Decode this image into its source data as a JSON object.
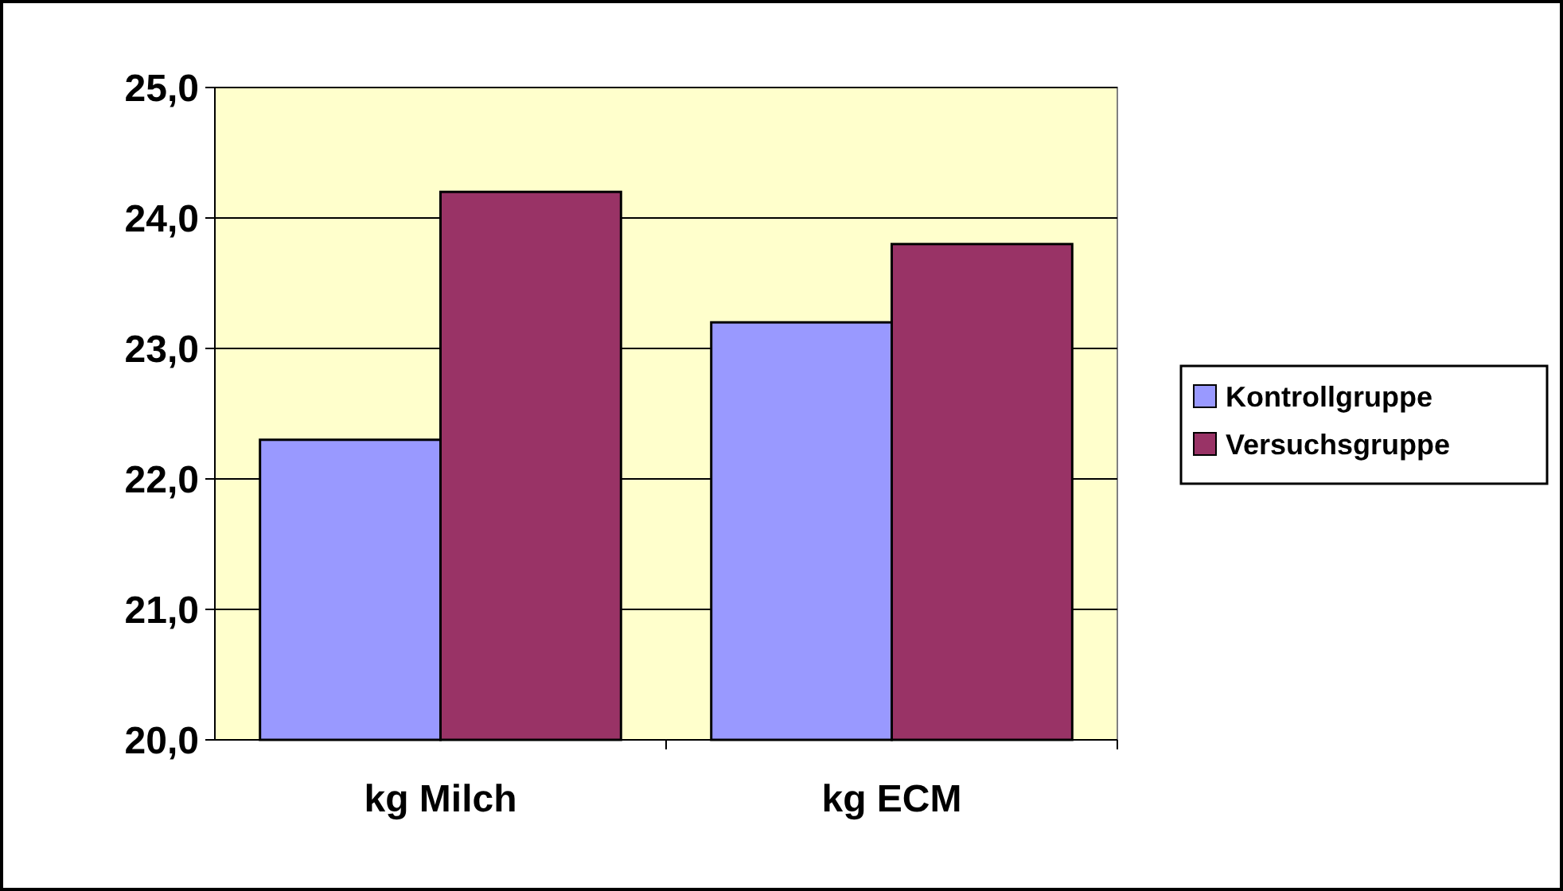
{
  "chart_data": {
    "type": "bar",
    "categories": [
      "kg Milch",
      "kg ECM"
    ],
    "series": [
      {
        "name": "Kontrollgruppe",
        "color": "#9999ff",
        "values": [
          22.3,
          23.2
        ]
      },
      {
        "name": "Versuchsgruppe",
        "color": "#993366",
        "values": [
          24.2,
          23.8
        ]
      }
    ],
    "ylim": [
      20,
      25
    ],
    "yticks": [
      {
        "value": 20,
        "label": "20,0"
      },
      {
        "value": 21,
        "label": "21,0"
      },
      {
        "value": 22,
        "label": "22,0"
      },
      {
        "value": 23,
        "label": "23,0"
      },
      {
        "value": 24,
        "label": "24,0"
      },
      {
        "value": 25,
        "label": "25,0"
      }
    ],
    "grid": "y",
    "legend": "right"
  }
}
